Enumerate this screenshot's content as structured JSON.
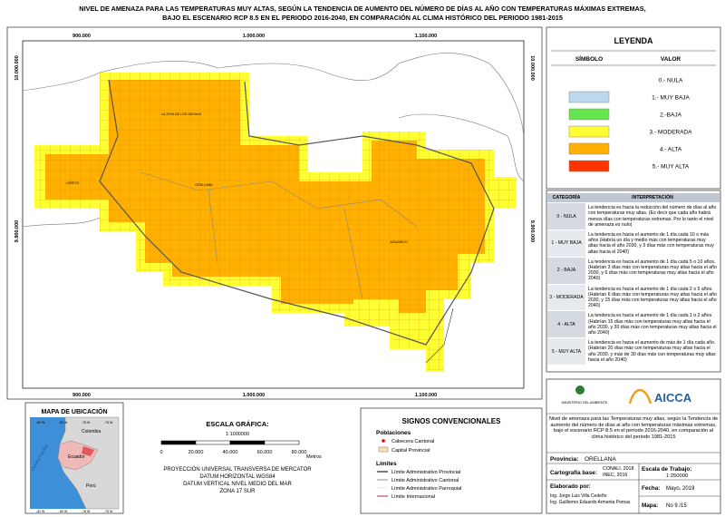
{
  "header": {
    "title_lines": [
      "NIVEL DE AMENAZA PARA LAS TEMPERATURAS MUY ALTAS, SEGÚN LA TENDENCIA DE AUMENTO DEL NÚMERO DE DÍAS AL AÑO CON TEMPERATURAS MÁXIMAS EXTREMAS,",
      "BAJO EL ESCENARIO RCP 8.5 EN EL PERIODO 2016-2040, EN COMPARACIÓN AL CLIMA HISTÓRICO DEL PERIODO 1981-2015"
    ]
  },
  "map": {
    "x_coords": [
      "900.000",
      "1.000.000",
      "1.100.000"
    ],
    "y_coords": [
      "10.000.000",
      "9.900.000"
    ],
    "place_labels": [
      "LA JOYA DE LOS SACHAS",
      "LORETO",
      "ORELLANA",
      "AGUARICO"
    ]
  },
  "legend": {
    "title": "LEYENDA",
    "col_symbol": "SÍMBOLO",
    "col_value": "VALOR",
    "items": [
      {
        "label": "0.- NULA"
      },
      {
        "label": "1.- MUY BAJA",
        "color": "#bdd7ee"
      },
      {
        "label": "2.-BAJA",
        "color": "#66e64d"
      },
      {
        "label": "3.- MODERADA",
        "color": "#ffff33"
      },
      {
        "label": "4.- ALTA",
        "color": "#ffb000"
      },
      {
        "label": "5.- MUY ALTA",
        "color": "#ff3300"
      }
    ]
  },
  "interpretation": {
    "col_category": "CATEGORÍA",
    "col_text": "INTERPRETACIÓN",
    "rows": [
      {
        "category": "0 - NULA",
        "text": "La tendencia es hacia la reducción del número de días al año con temperaturas muy altas. (Es decir que cada año habrá menos días con temperaturas extremas. Por lo tanto el nivel de amenaza es nulo)"
      },
      {
        "category": "1 - MUY BAJA",
        "text": "La tendencia es hacia el aumento de 1 día cada 10 o más años (Habría un día y medio más con temperaturas muy altas hacia el año 2030, y 3 días más con temperaturas muy altas hacia el 2040)"
      },
      {
        "category": "2 - BAJA",
        "text": "La tendencia es hacia el aumento de 1 día cada 5 o 10 años. (Habrían 3 días más con temperaturas muy altas hacia el año 2030, y 6 días más con temperaturas muy altas hacia el año 2040)"
      },
      {
        "category": "3 - MODERADA",
        "text": "La tendencia es hacia el aumento de 1 día cada 2 o 5 años. (Habrían 6 días más con temperaturas muy altas hacia el año 2030, y 15 días más con temperaturas muy altas hacia el año 2040)"
      },
      {
        "category": "4 - ALTA",
        "text": "La tendencia es hacia el aumento de 1 día cada 1 o 2 años. (Habrían 15 días más con temperaturas muy altas hacia el año 2030, y 30 días más con temperaturas muy altas hacia el año 2040)"
      },
      {
        "category": "5 - MUY ALTA",
        "text": "La tendencia es hacia el aumento de más de 1 día cada año. (Habrían 20 días más con temperaturas muy altas hacia el año 2030, y más de 30 días más con temperaturas muy altas hacia el año 2040)"
      }
    ]
  },
  "location_map": {
    "title": "MAPA DE UBICACIÓN",
    "lon_labels": [
      "-82 W",
      "-80 W",
      "-78 W",
      "-76 W"
    ],
    "countries": [
      "Colombia",
      "Ecuador",
      "Perú"
    ],
    "ocean": "Oceano Pacifico"
  },
  "scale": {
    "title": "ESCALA GRÁFICA:",
    "ratio": "1:1000000",
    "ticks": [
      "0",
      "20.000",
      "40.000",
      "60.000",
      "80.000"
    ],
    "unit": "Metros",
    "projection": [
      "PROYECCIÓN UNIVERSAL TRANSVERSA DE MERCATOR",
      "DATUM HORIZONTAL WGS84",
      "DATUM VERTICAL NIVEL MEDIO DEL MAR",
      "ZONA 17 SUR"
    ]
  },
  "signs": {
    "title": "SIGNOS CONVENCIONALES",
    "populations": "Poblaciones",
    "cantonal": "Cabecera Cantonal",
    "provincial": "Capital Provincial",
    "limits": "Límites",
    "limit_items": [
      "Límite Administrativo Provincial",
      "Límite Administrativo Cantonal",
      "Límite Administrativo Parroquial",
      "Límite Internacional"
    ]
  },
  "info": {
    "ministry": "MINISTERIO DEL AMBIENTE",
    "logo": "AICCA",
    "description": "Nivel de amenaza para las Temperaturas muy altas, según la Tendencia de aumento del número de días al año con temperaturas máximas extremas, bajo el escenario RCP 8.5 en el periodo 2016-2040, en comparación al clima histórico del periodo 1981-2015",
    "province_label": "Provincia:",
    "province": "ORELLANA",
    "base_label": "Cartografía base:",
    "base_lines": [
      "CONALI, 2018",
      "INEC, 2016"
    ],
    "scale_label": "Escala de Trabajo:",
    "scale": "1:250000",
    "author_label": "Elaborado por:",
    "authors": [
      "Ing. Jorge Luis Villa Cedeño",
      "Ing. Guillermo Eduardo Armenta Pomas"
    ],
    "date_label": "Fecha:",
    "date": "Mayo, 2019",
    "map_label": "Mapa:",
    "map_no": "No 9 /15"
  }
}
